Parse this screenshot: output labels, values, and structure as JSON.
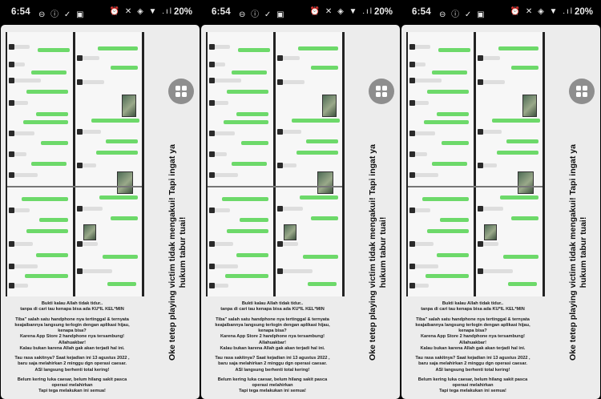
{
  "status_bar": {
    "time": "6:54",
    "left_icons": "⊖ ⓘ ✓ ▣",
    "right_icons": "⏰ ✕ ◈ ▼ .ıl",
    "battery": "20%"
  },
  "grid_button": {
    "icon": "grid-icon",
    "color": "#8e8e8e"
  },
  "side_text": {
    "line1": "Oke tetep playing victim tidak mengakui! Tapi ingat ya",
    "line2": "hukum tabur tuai!"
  },
  "caption": {
    "paragraphs": [
      [
        "Bukti kalau Allah tidak tidur..",
        "tanpa di cari tau kenapa bisa ada KU*IL KEL*MIN"
      ],
      [
        "Tiba\" salah satu handphone nya tertinggal & ternyata",
        "keajaibannya langsung terlogin dengan aplikasi hijau,",
        "kenapa bisa?",
        "Karena App Store 2 handphone nya tersambung!",
        "Allahuakbar!",
        "Kalau bukan karena Allah gak akan terjadi hal ini."
      ],
      [
        "Tau rasa sakitnya? Saat kejadian ini 13 agustus 2022 ,",
        "baru saja melahirkan 2 minggu dgn operasi caesar.",
        "ASI langsung berhenti total kering!"
      ],
      [
        "Belum kering luka caesar, belum hilang sakit pasca",
        "operasi melahirkan",
        "Tapi tega melakukan ini semua!"
      ]
    ]
  },
  "chat_text": {
    "c1": [
      "gak",
      "ya",
      "yah masuk ge",
      "yah",
      "sini",
      "yah nge tau",
      "tidur"
    ],
    "c2": [
      "unfollow",
      "ok",
      "ngapain",
      "nah",
      "hehe",
      "lagi"
    ]
  },
  "colors": {
    "sent_bubble": "#6dd96a",
    "received_bubble": "#dedede",
    "card_bg": "#ececec"
  }
}
